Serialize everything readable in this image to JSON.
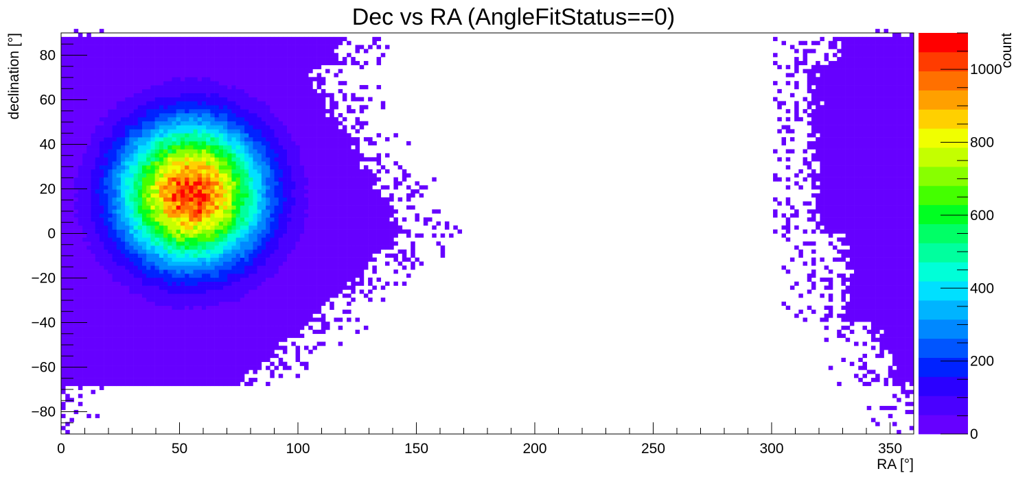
{
  "chart_data": {
    "type": "heatmap",
    "title": "Dec vs RA (AngleFitStatus==0)",
    "xlabel": "RA [°]",
    "ylabel": "declination [°]",
    "zlabel": "count",
    "xlim": [
      0,
      360
    ],
    "ylim": [
      -90,
      90
    ],
    "zlim": [
      0,
      1100
    ],
    "x_ticks": [
      0,
      50,
      100,
      150,
      200,
      250,
      300,
      350
    ],
    "y_ticks": [
      -80,
      -60,
      -40,
      -20,
      0,
      20,
      40,
      60,
      80
    ],
    "z_ticks": [
      0,
      200,
      400,
      600,
      800,
      1000
    ],
    "x_tick_labels": [
      "0",
      "50",
      "100",
      "150",
      "200",
      "250",
      "300",
      "350"
    ],
    "y_tick_labels": [
      "−80",
      "−60",
      "−40",
      "−20",
      "0",
      "20",
      "40",
      "60",
      "80"
    ],
    "z_tick_labels": [
      "0",
      "200",
      "400",
      "600",
      "800",
      "1000"
    ],
    "peak": {
      "ra": 55,
      "dec": 18,
      "count": 1050
    },
    "colormap": [
      "#6600ff",
      "#4a00ff",
      "#2b00ff",
      "#0022ff",
      "#0055ff",
      "#0088ff",
      "#00b4ff",
      "#00e0ff",
      "#00ffd8",
      "#00ff9e",
      "#00ff66",
      "#00ff22",
      "#44ff00",
      "#88ff00",
      "#c4ff00",
      "#f0ff00",
      "#ffd000",
      "#ffa000",
      "#ff7000",
      "#ff3c00",
      "#ff0000"
    ],
    "grid": false,
    "legend": "colorbar-right"
  }
}
